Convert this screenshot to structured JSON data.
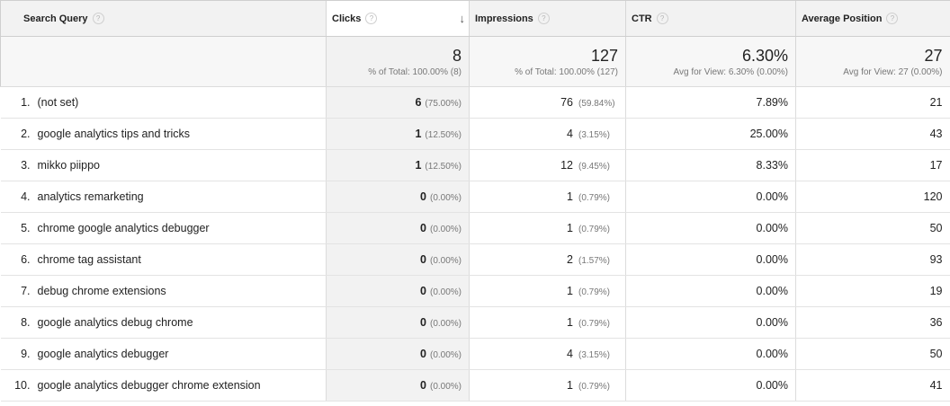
{
  "header": {
    "query": "Search Query",
    "clicks": "Clicks",
    "impressions": "Impressions",
    "ctr": "CTR",
    "position": "Average Position",
    "help": "?",
    "sort_indicator": "↓"
  },
  "totals": {
    "clicks": {
      "value": "8",
      "sub": "% of Total: 100.00% (8)"
    },
    "impressions": {
      "value": "127",
      "sub": "% of Total: 100.00% (127)"
    },
    "ctr": {
      "value": "6.30%",
      "sub": "Avg for View: 6.30% (0.00%)"
    },
    "position": {
      "value": "27",
      "sub": "Avg for View: 27 (0.00%)"
    }
  },
  "rows": [
    {
      "rank": "1.",
      "query": "(not set)",
      "clicks": "6",
      "clicks_pct": "(75.00%)",
      "impressions": "76",
      "impressions_pct": "(59.84%)",
      "ctr": "7.89%",
      "position": "21"
    },
    {
      "rank": "2.",
      "query": "google analytics tips and tricks",
      "clicks": "1",
      "clicks_pct": "(12.50%)",
      "impressions": "4",
      "impressions_pct": "(3.15%)",
      "ctr": "25.00%",
      "position": "43"
    },
    {
      "rank": "3.",
      "query": "mikko piippo",
      "clicks": "1",
      "clicks_pct": "(12.50%)",
      "impressions": "12",
      "impressions_pct": "(9.45%)",
      "ctr": "8.33%",
      "position": "17"
    },
    {
      "rank": "4.",
      "query": "analytics remarketing",
      "clicks": "0",
      "clicks_pct": "(0.00%)",
      "impressions": "1",
      "impressions_pct": "(0.79%)",
      "ctr": "0.00%",
      "position": "120"
    },
    {
      "rank": "5.",
      "query": "chrome google analytics debugger",
      "clicks": "0",
      "clicks_pct": "(0.00%)",
      "impressions": "1",
      "impressions_pct": "(0.79%)",
      "ctr": "0.00%",
      "position": "50"
    },
    {
      "rank": "6.",
      "query": "chrome tag assistant",
      "clicks": "0",
      "clicks_pct": "(0.00%)",
      "impressions": "2",
      "impressions_pct": "(1.57%)",
      "ctr": "0.00%",
      "position": "93"
    },
    {
      "rank": "7.",
      "query": "debug chrome extensions",
      "clicks": "0",
      "clicks_pct": "(0.00%)",
      "impressions": "1",
      "impressions_pct": "(0.79%)",
      "ctr": "0.00%",
      "position": "19"
    },
    {
      "rank": "8.",
      "query": "google analytics debug chrome",
      "clicks": "0",
      "clicks_pct": "(0.00%)",
      "impressions": "1",
      "impressions_pct": "(0.79%)",
      "ctr": "0.00%",
      "position": "36"
    },
    {
      "rank": "9.",
      "query": "google analytics debugger",
      "clicks": "0",
      "clicks_pct": "(0.00%)",
      "impressions": "4",
      "impressions_pct": "(3.15%)",
      "ctr": "0.00%",
      "position": "50"
    },
    {
      "rank": "10.",
      "query": "google analytics debugger chrome extension",
      "clicks": "0",
      "clicks_pct": "(0.00%)",
      "impressions": "1",
      "impressions_pct": "(0.79%)",
      "ctr": "0.00%",
      "position": "41"
    }
  ]
}
